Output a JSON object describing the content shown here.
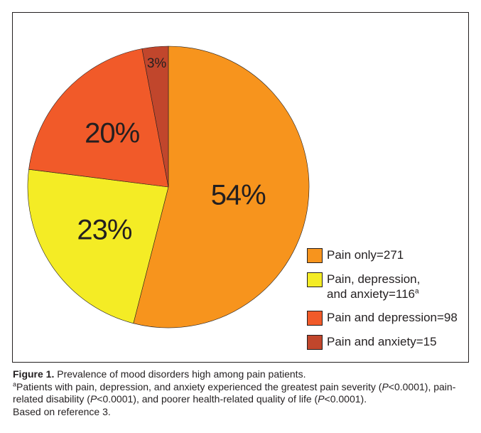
{
  "chart_data": {
    "type": "pie",
    "slices": [
      {
        "name": "Pain only=271",
        "value": 54,
        "label": "54%",
        "color": "#f7941d"
      },
      {
        "name": "Pain, depression, and anxiety=116",
        "value": 23,
        "label": "23%",
        "color": "#f4ec25"
      },
      {
        "name": "Pain and depression=98",
        "value": 20,
        "label": "20%",
        "color": "#f15a29"
      },
      {
        "name": "Pain and anxiety=15",
        "value": 3,
        "label": "3%",
        "color": "#c1462c"
      }
    ],
    "legend_position": "right"
  },
  "legend": [
    {
      "line1": "Pain only=271",
      "line2": "",
      "sup": ""
    },
    {
      "line1": "Pain, depression,",
      "line2": "and anxiety=116",
      "sup": "a"
    },
    {
      "line1": "Pain and depression=98",
      "line2": "",
      "sup": ""
    },
    {
      "line1": "Pain and anxiety=15",
      "line2": "",
      "sup": ""
    }
  ],
  "caption": {
    "figure_label": "Figure 1.",
    "title": " Prevalence of mood disorders high among pain patients.",
    "footnote_marker": "a",
    "footnote_part1": "Patients with pain, depression, and anxiety experienced the greatest pain severity (",
    "p_letter": "P",
    "footnote_part2": "<0.0001), pain-related disability (",
    "footnote_part3": "<0.0001), and poorer health-related quality of life (",
    "footnote_part4": "<0.0001).",
    "reference": "Based on reference 3."
  }
}
